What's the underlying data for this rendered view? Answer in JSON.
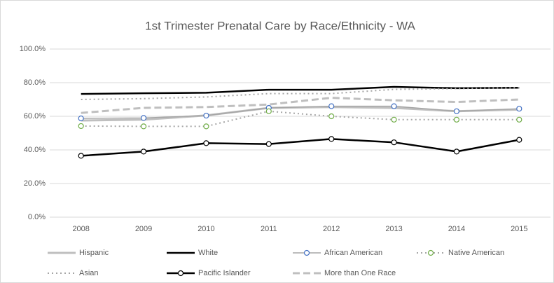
{
  "chart_data": {
    "type": "line",
    "title": "1st Trimester Prenatal Care by Race/Ethnicity - WA",
    "categories": [
      "2008",
      "2009",
      "2010",
      "2011",
      "2012",
      "2013",
      "2014",
      "2015"
    ],
    "ylim": [
      0,
      100
    ],
    "yticks": [
      {
        "value": 0,
        "label": "0.0%"
      },
      {
        "value": 20,
        "label": "20.0%"
      },
      {
        "value": 40,
        "label": "40.0%"
      },
      {
        "value": 60,
        "label": "60.0%"
      },
      {
        "value": 80,
        "label": "80.0%"
      },
      {
        "value": 100,
        "label": "100.0%"
      }
    ],
    "grid": true,
    "legend": "bottom",
    "series": [
      {
        "name": "Hispanic",
        "color": "#bfbfbf",
        "dash": "solid",
        "width": 3,
        "marker": null,
        "values": [
          57.5,
          58,
          60.5,
          65,
          65.5,
          65,
          63,
          64
        ]
      },
      {
        "name": "White",
        "color": "#000000",
        "dash": "solid",
        "width": 2.5,
        "marker": null,
        "values": [
          73.3,
          73.7,
          74,
          75.8,
          75.8,
          77.5,
          76.7,
          77
        ]
      },
      {
        "name": "African American",
        "color": "#a6a6a6",
        "dash": "solid",
        "width": 1.5,
        "marker": "#4472c4",
        "values": [
          58.75,
          59,
          60.4,
          65,
          66,
          66,
          63,
          64.5
        ]
      },
      {
        "name": "Native American",
        "color": "#a6a6a6",
        "dash": "dot",
        "width": 2,
        "marker": "#70ad47",
        "values": [
          54.2,
          54,
          54,
          63,
          60,
          58,
          58,
          58
        ]
      },
      {
        "name": "Asian",
        "color": "#a6a6a6",
        "dash": "dot",
        "width": 2,
        "marker": null,
        "values": [
          70,
          70.5,
          71.5,
          73.5,
          73.5,
          76,
          76.5,
          77
        ]
      },
      {
        "name": "Pacific Islander",
        "color": "#000000",
        "dash": "solid",
        "width": 2.5,
        "marker": "#000000",
        "values": [
          36.5,
          39,
          44,
          43.5,
          46.5,
          44.5,
          39,
          46
        ]
      },
      {
        "name": "More than One Race",
        "color": "#bfbfbf",
        "dash": "dash",
        "width": 3,
        "marker": null,
        "values": [
          62,
          65,
          65.5,
          67,
          71,
          69.5,
          68.5,
          70
        ]
      }
    ]
  }
}
